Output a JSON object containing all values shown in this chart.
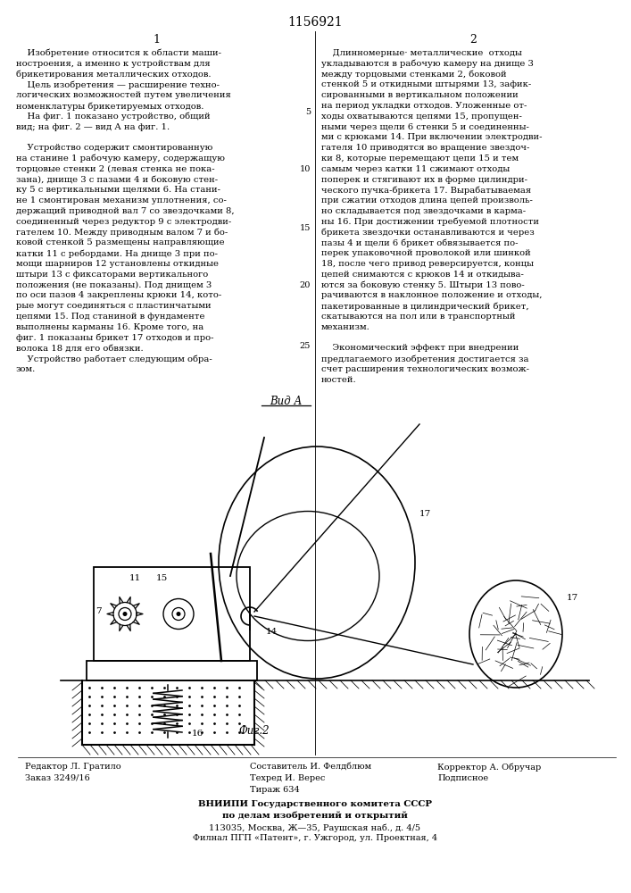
{
  "patent_number": "1156921",
  "col1_header": "1",
  "col2_header": "2",
  "col1_text_lines": [
    "    Изобретение относится к области маши-",
    "ностроения, а именно к устройствам для",
    "брикетирования металлических отходов.",
    "    Цель изобретения — расширение техно-",
    "логических возможностей путем увеличения",
    "номенклатуры брикетируемых отходов.",
    "    На фиг. 1 показано устройство, общий",
    "вид; на фиг. 2 — вид А на фиг. 1.",
    "",
    "    Устройство содержит смонтированную",
    "на станине 1 рабочую камеру, содержащую",
    "торцовые стенки 2 (левая стенка не пока-",
    "зана), днище 3 с пазами 4 и боковую стен-",
    "ку 5 с вертикальными щелями 6. На стани-",
    "не 1 смонтирован механизм уплотнения, со-",
    "держащий приводной вал 7 со звездочками 8,",
    "соединенный через редуктор 9 с электродви-",
    "гателем 10. Между приводным валом 7 и бо-",
    "ковой стенкой 5 размещены направляющие",
    "катки 11 с ребордами. На днище 3 при по-",
    "мощи шарниров 12 установлены откидные",
    "штыри 13 с фиксаторами вертикального",
    "положения (не показаны). Под днищем 3",
    "по оси пазов 4 закреплены крюки 14, кото-",
    "рые могут соединяться с пластинчатыми",
    "цепями 15. Под станиной в фундаменте",
    "выполнены карманы 16. Кроме того, на",
    "фиг. 1 показаны брикет 17 отходов и про-",
    "волока 18 для его обвязки.",
    "    Устройство работает следующим обра-",
    "зом."
  ],
  "col2_text_lines": [
    "    Длинномерные· металлические  отходы",
    "укладываются в рабочую камеру на днище 3",
    "между торцовыми стенками 2, боковой",
    "стенкой 5 и откидными штырями 13, зафик-",
    "сированными в вертикальном положении",
    "на период укладки отходов. Уложенные от-",
    "ходы охватываются цепями 15, пропущен-",
    "ными через щели 6 стенки 5 и соединенны-",
    "ми с крюками 14. При включении электродви-",
    "гателя 10 приводятся во вращение звездоч-",
    "ки 8, которые перемещают цепи 15 и тем",
    "самым через катки 11 сжимают отходы",
    "поперек и стягивают их в форме цилиндри-",
    "ческого пучка-брикета 17. Вырабатываемая",
    "при сжатии отходов длина цепей произволь-",
    "но складывается под звездочками в карма-",
    "ны 16. При достижении требуемой плотности",
    "брикета звездочки останавливаются и через",
    "пазы 4 и щели 6 брикет обвязывается по-",
    "перек упаковочной проволокой или шинкой",
    "18, после чего привод реверсируется, концы",
    "цепей снимаются с крюков 14 и откидыва-",
    "ются за боковую стенку 5. Штыри 13 пово-",
    "рачиваются в наклонное положение и отходы,",
    "пакетированные в цилиндрический брикет,",
    "скатываются на пол или в транспортный",
    "механизм.",
    "",
    "    Экономический эффект при внедрении",
    "предлагаемого изобретения достигается за",
    "счет расширения технологических возмож-",
    "ностей."
  ],
  "line_numbers": [
    "5",
    "10",
    "15",
    "20",
    "25"
  ],
  "vida_label": "Вид А",
  "fig2_label": "Фиг.2",
  "footer_left_line1": "Редактор Л. Гратило",
  "footer_left_line2": "Заказ 3249/16",
  "footer_center_line1": "Составитель И. Фелдблюм",
  "footer_center_line2": "Техред И. Верес",
  "footer_center_line3": "Тираж 634",
  "footer_right_line1": "Корректор А. Обручар",
  "footer_right_line2": "Подписное",
  "footer_vniip1": "ВНИИПИ Государственного комитета СССР",
  "footer_vniip2": "по делам изобретений и открытий",
  "footer_vniip3": "113035, Москва, Ж—35, Раушская наб., д. 4/5",
  "footer_vniip4": "Филнал ПГП «Патент», г. Ужгород, ул. Проектная, 4",
  "bg_color": "#ffffff",
  "text_color": "#000000",
  "line_color": "#000000"
}
